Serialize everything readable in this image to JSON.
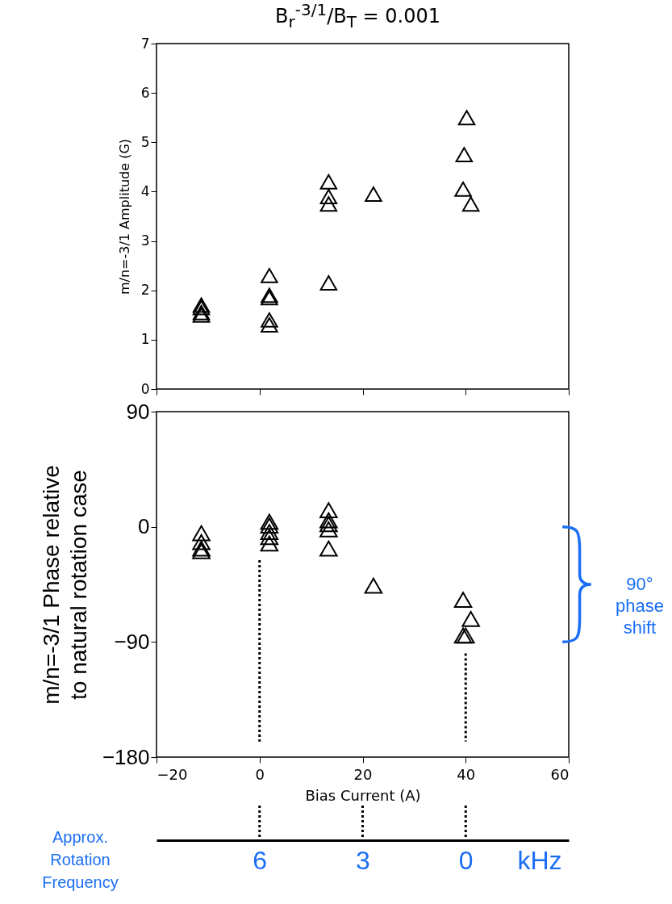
{
  "chart_data": [
    {
      "type": "scatter",
      "title": "B$_{r}$$^{-3/1}$/B$_{T}$ = 0.001",
      "ylabel": "m/n=-3/1 Amplitude (G)",
      "xlim": [
        -20,
        60
      ],
      "xticks": [
        -20,
        0,
        20,
        40,
        60
      ],
      "ylim": [
        0,
        7
      ],
      "yticks": [
        0,
        1,
        2,
        3,
        4,
        5,
        6,
        7
      ],
      "marker": "triangle",
      "tick_labels": "y",
      "series": [
        {
          "color": "#000000",
          "x": [
            -11.3,
            -11.3,
            -11.3,
            -11.3,
            1.9,
            1.9,
            1.9,
            1.9,
            1.9,
            13.4,
            13.4,
            13.4,
            13.4,
            22.1,
            39.5,
            39.7,
            40.2,
            41
          ],
          "values": [
            1.7,
            1.65,
            1.55,
            1.5,
            2.3,
            1.9,
            1.85,
            1.4,
            1.3,
            4.2,
            3.9,
            3.75,
            2.15,
            3.95,
            4.05,
            4.75,
            5.5,
            3.75
          ]
        }
      ]
    },
    {
      "type": "scatter",
      "xlabel": "Bias Current (A)",
      "ylabel": "m/n=-3/1 Phase relative to natural rotation case",
      "xlim": [
        -20,
        60
      ],
      "xticks": [
        -20,
        0,
        20,
        40,
        60
      ],
      "ylim": [
        -180,
        90
      ],
      "yticks": [
        -180,
        -90,
        0,
        90
      ],
      "marker": "triangle",
      "series": [
        {
          "color": "#000000",
          "x": [
            -11.3,
            -11.3,
            -11.3,
            -11.3,
            1.9,
            1.9,
            1.9,
            1.9,
            1.9,
            13.4,
            13.4,
            13.4,
            13.4,
            13.4,
            22.1,
            39.5,
            41,
            39.5,
            40
          ],
          "values": [
            -5,
            -12,
            -17,
            -19,
            4,
            1,
            -4,
            -8,
            -13,
            13,
            5,
            2,
            -2,
            -17,
            -46,
            -57,
            -72,
            -85,
            -85
          ]
        }
      ],
      "ref_lines": [
        {
          "axis": "x",
          "value": 0,
          "line_style": "dotted"
        },
        {
          "axis": "x",
          "value": 40,
          "line_style": "dotted"
        }
      ],
      "x2label": "Approx. Rotation Frequency",
      "x2lim": [
        9,
        -3
      ],
      "x2ticks": [
        6,
        3,
        0
      ],
      "annotations": [
        "90° phase shift",
        "kHz"
      ]
    }
  ]
}
